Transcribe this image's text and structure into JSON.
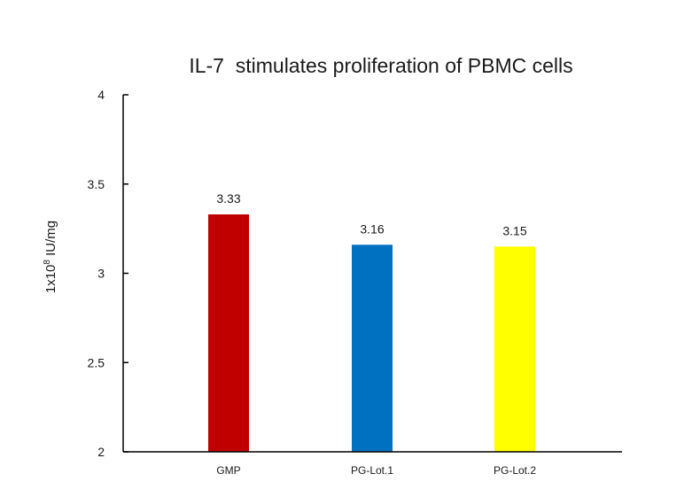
{
  "chart_data": {
    "type": "bar",
    "title": "IL-7  stimulates proliferation of PBMC cells",
    "ylabel": {
      "prefix": "1x10",
      "superscript": "8",
      "suffix": " IU/mg"
    },
    "xlabel": "",
    "ylim": [
      2,
      4
    ],
    "yticks": [
      "2",
      "2.5",
      "3",
      "3.5",
      "4"
    ],
    "categories": [
      "GMP",
      "PG-Lot.1",
      "PG-Lot.2"
    ],
    "values": [
      3.33,
      3.16,
      3.15
    ],
    "data_labels": [
      "3.33",
      "3.16",
      "3.15"
    ],
    "colors": [
      "#C00000",
      "#0070C0",
      "#FFFF00"
    ],
    "grid": false,
    "legend": "none"
  }
}
